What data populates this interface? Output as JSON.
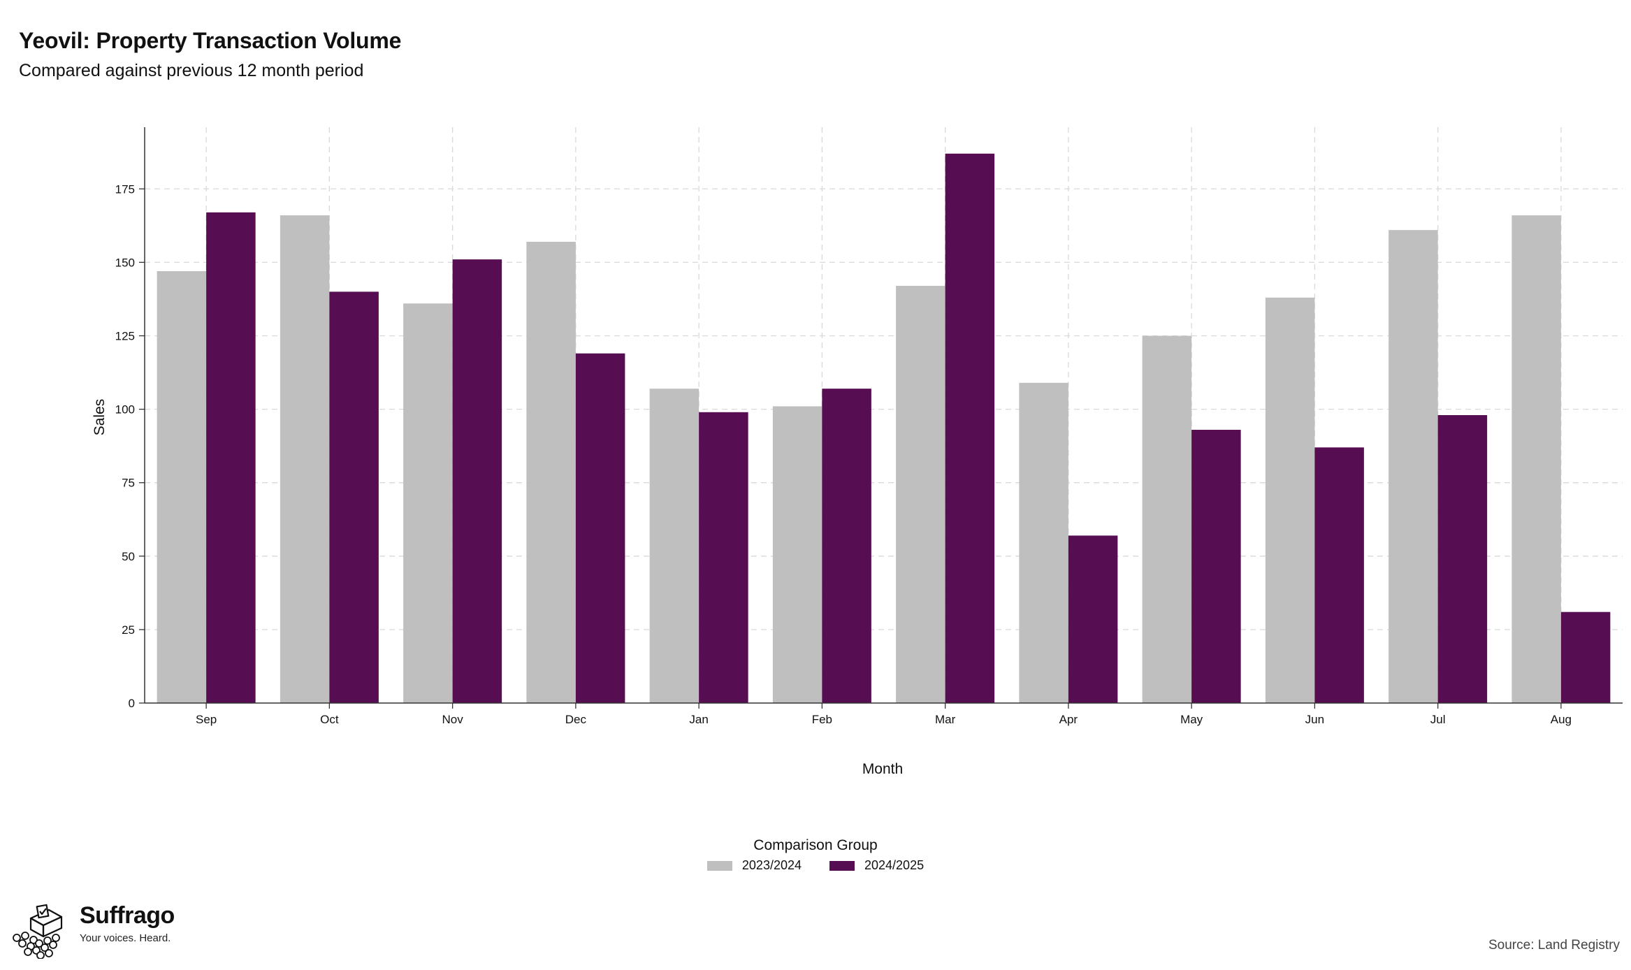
{
  "header": {
    "title": "Yeovil: Property Transaction Volume",
    "subtitle": "Compared against previous 12 month period"
  },
  "chart_data": {
    "type": "bar",
    "title": "Yeovil: Property Transaction Volume",
    "subtitle": "Compared against previous 12 month period",
    "xlabel": "Month",
    "ylabel": "Sales",
    "categories": [
      "Sep",
      "Oct",
      "Nov",
      "Dec",
      "Jan",
      "Feb",
      "Mar",
      "Apr",
      "May",
      "Jun",
      "Jul",
      "Aug"
    ],
    "series": [
      {
        "name": "2023/2024",
        "color": "#bfbfbf",
        "values": [
          147,
          166,
          136,
          157,
          107,
          101,
          142,
          109,
          125,
          138,
          161,
          166
        ]
      },
      {
        "name": "2024/2025",
        "color": "#560d52",
        "values": [
          167,
          140,
          151,
          119,
          99,
          107,
          187,
          57,
          93,
          87,
          98,
          31
        ]
      }
    ],
    "yticks": [
      0,
      25,
      50,
      75,
      100,
      125,
      150,
      175
    ],
    "ylim": [
      0,
      196
    ],
    "grid": true,
    "legend_title": "Comparison Group",
    "legend_position": "bottom-center"
  },
  "footer": {
    "brand_name": "Suffrago",
    "brand_tagline": "Your voices. Heard.",
    "logo_icon": "ballot-box-with-crowd-icon",
    "source": "Source: Land Registry"
  }
}
